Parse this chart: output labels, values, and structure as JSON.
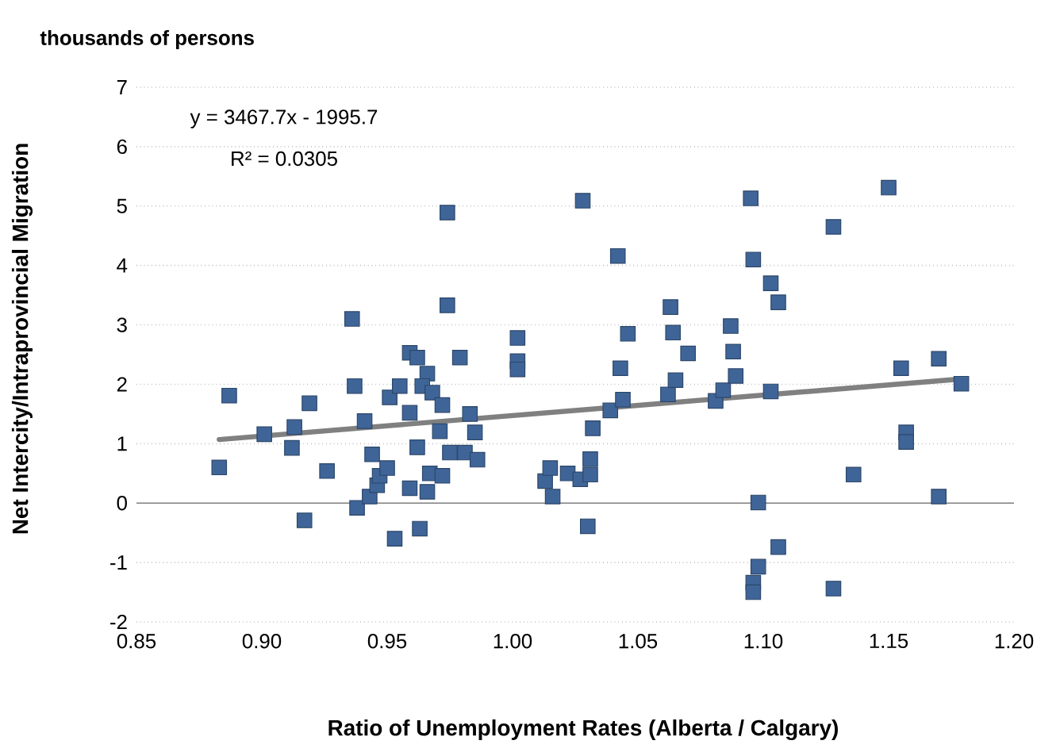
{
  "chart_data": {
    "type": "scatter",
    "xlabel": "Ratio of Unemployment Rates (Alberta / Calgary)",
    "ylabel": "Net Intercity/Intraprovincial Migration",
    "annotations": [
      "thousands of persons",
      "y = 3467.7x - 1995.7",
      "R² = 0.0305"
    ],
    "xlim": [
      0.85,
      1.2
    ],
    "ylim": [
      -2,
      7
    ],
    "xticks": [
      {
        "value": 0.85,
        "label": "0.85"
      },
      {
        "value": 0.9,
        "label": "0.90"
      },
      {
        "value": 0.95,
        "label": "0.95"
      },
      {
        "value": 1.0,
        "label": "1.00"
      },
      {
        "value": 1.05,
        "label": "1.05"
      },
      {
        "value": 1.1,
        "label": "1.10"
      },
      {
        "value": 1.15,
        "label": "1.15"
      },
      {
        "value": 1.2,
        "label": "1.20"
      }
    ],
    "yticks": [
      -2,
      -1,
      0,
      1,
      2,
      3,
      4,
      5,
      6,
      7
    ],
    "grid": "y",
    "marker": "square",
    "series": [
      {
        "color": "#3f6598",
        "x": [
          0.883,
          0.887,
          0.901,
          0.912,
          0.913,
          0.917,
          0.919,
          0.926,
          0.936,
          0.937,
          0.938,
          0.941,
          0.943,
          0.944,
          0.946,
          0.947,
          0.95,
          0.951,
          0.953,
          0.955,
          0.959,
          0.959,
          0.959,
          0.962,
          0.962,
          0.963,
          0.966,
          0.966,
          0.964,
          0.967,
          0.968,
          0.971,
          0.972,
          0.972,
          0.974,
          0.974,
          0.975,
          0.979,
          0.981,
          0.983,
          0.985,
          0.986,
          1.002,
          1.002,
          1.002,
          1.013,
          1.015,
          1.016,
          1.022,
          1.027,
          1.028,
          1.03,
          1.031,
          1.031,
          1.032,
          1.039,
          1.042,
          1.043,
          1.044,
          1.046,
          1.062,
          1.063,
          1.064,
          1.065,
          1.07,
          1.081,
          1.084,
          1.087,
          1.088,
          1.089,
          1.095,
          1.096,
          1.098,
          1.098,
          1.096,
          1.096,
          1.103,
          1.106,
          1.103,
          1.106,
          1.128,
          1.128,
          1.136,
          1.15,
          1.155,
          1.157,
          1.157,
          1.17,
          1.17,
          1.179
        ],
        "values": [
          0.6,
          1.81,
          1.16,
          0.93,
          1.28,
          -0.29,
          1.68,
          0.54,
          3.1,
          1.97,
          -0.08,
          1.38,
          0.11,
          0.82,
          0.3,
          0.46,
          0.59,
          1.78,
          -0.6,
          1.97,
          2.53,
          0.25,
          1.52,
          2.45,
          0.94,
          -0.43,
          0.19,
          2.18,
          1.97,
          0.5,
          1.86,
          1.21,
          0.46,
          1.65,
          4.89,
          3.33,
          0.85,
          2.45,
          0.85,
          1.5,
          1.19,
          0.73,
          2.78,
          2.39,
          2.25,
          0.37,
          0.59,
          0.11,
          0.5,
          0.4,
          5.09,
          -0.39,
          0.74,
          0.48,
          1.26,
          1.56,
          4.16,
          2.27,
          1.74,
          2.85,
          1.83,
          3.3,
          2.87,
          2.07,
          2.52,
          1.72,
          1.9,
          2.98,
          2.55,
          2.14,
          5.13,
          4.1,
          0.01,
          -1.07,
          -1.34,
          -1.5,
          3.7,
          3.38,
          1.88,
          -0.74,
          4.65,
          -1.44,
          0.48,
          5.31,
          2.27,
          1.19,
          1.03,
          2.43,
          0.11,
          2.01
        ]
      },
      {
        "type": "line",
        "color": "#808080",
        "marker": "none",
        "line_style": "solid",
        "x": [
          0.883,
          1.179
        ],
        "values": [
          1.07,
          2.09
        ]
      }
    ]
  }
}
